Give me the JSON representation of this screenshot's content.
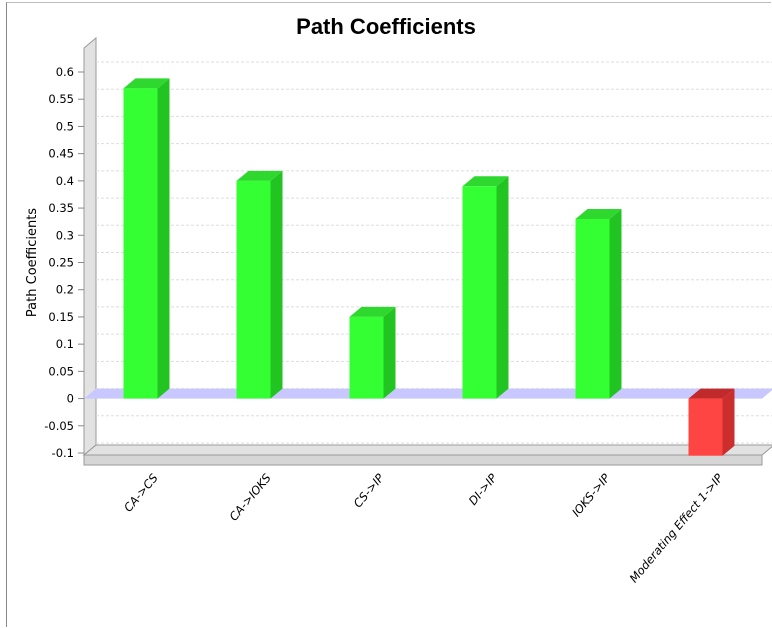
{
  "chart_data": {
    "type": "bar",
    "title": "Path Coefficients",
    "ylabel": "Path Coefficients",
    "xlabel": "",
    "categories": [
      "CA->CS",
      "CA->IOKS",
      "CS->IP",
      "DI->IP",
      "IOKS->IP",
      "Moderating Effect 1->IP"
    ],
    "values": [
      0.57,
      0.4,
      0.15,
      0.39,
      0.33,
      -0.105
    ],
    "ylim": [
      -0.1,
      0.6
    ],
    "yticks": [
      "0.6",
      "0.55",
      "0.5",
      "0.45",
      "0.4",
      "0.35",
      "0.3",
      "0.25",
      "0.2",
      "0.15",
      "0.1",
      "0.05",
      "0",
      "-0.05",
      "-0.1"
    ],
    "grid": true,
    "legend": "none",
    "style": "3d",
    "colors": {
      "positive": "#33ff33",
      "positive_side": "#22c422",
      "positive_top": "#2fd82f",
      "negative": "#ff4444",
      "negative_side": "#cc2d2d",
      "negative_top": "#c02a2a",
      "zero_band": "#c8c8ff",
      "wall": "#e2e2e2",
      "grid": "#dddddd"
    }
  }
}
